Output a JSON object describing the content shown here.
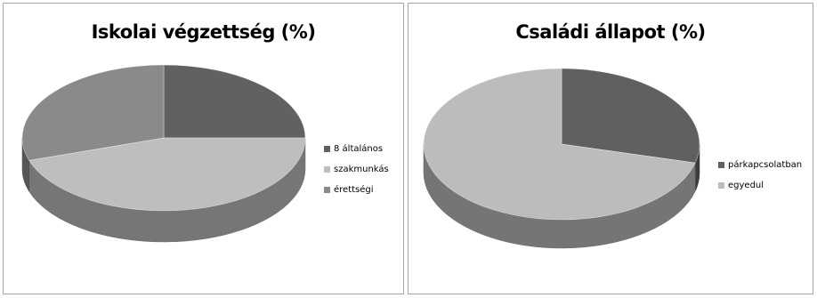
{
  "chart_data": [
    {
      "type": "pie",
      "style": "3d",
      "title": "Iskolai végzettség (%)",
      "legend_position": "right",
      "categories": [
        "8 általános",
        "szakmunkás",
        "érettségi"
      ],
      "values": [
        25,
        45,
        30
      ],
      "colors": [
        "#616161",
        "#bebebe",
        "#8a8a8a"
      ]
    },
    {
      "type": "pie",
      "style": "3d",
      "title": "Családi állapot (%)",
      "legend_position": "right",
      "categories": [
        "párkapcsolatban",
        "egyedul"
      ],
      "values": [
        29,
        71
      ],
      "colors": [
        "#606060",
        "#bcbcbc"
      ]
    }
  ]
}
